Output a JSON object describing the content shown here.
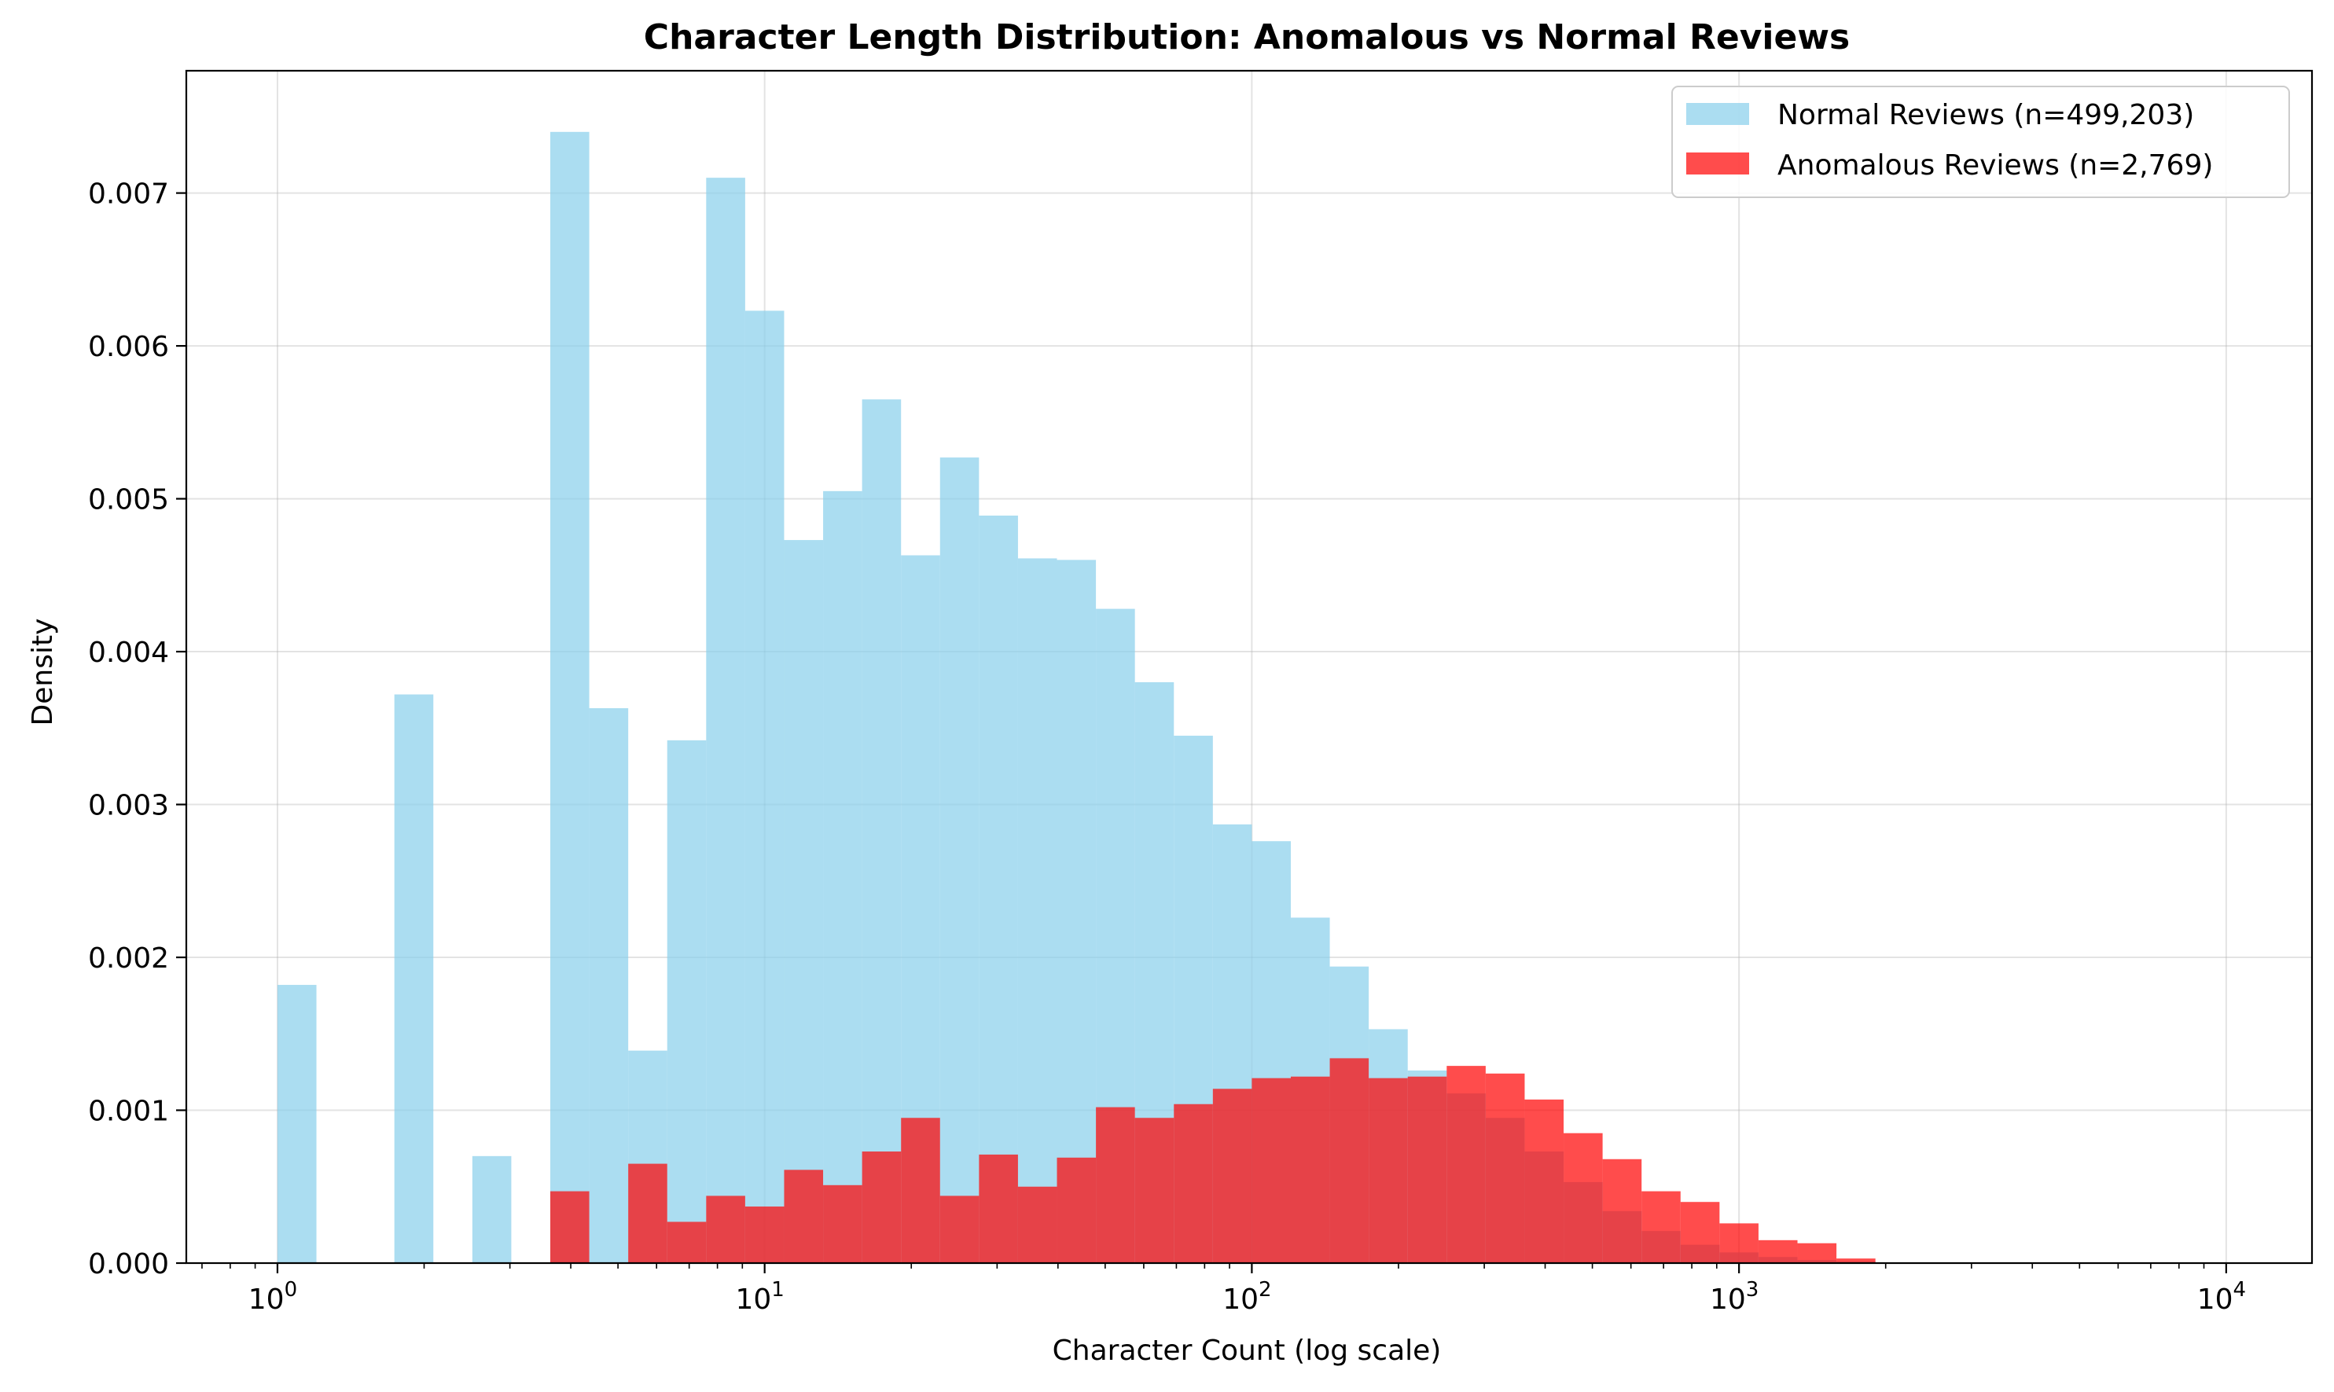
{
  "chart_data": {
    "type": "bar",
    "title": "Character Length Distribution: Anomalous vs Normal Reviews",
    "xlabel": "Character Count (log scale)",
    "ylabel": "Density",
    "x_scale": "log",
    "xlim": [
      0.65,
      15000
    ],
    "ylim": [
      0,
      0.0078
    ],
    "grid": true,
    "legend_position": "top-right",
    "x_ticks": [
      {
        "base": "10",
        "exp": "0",
        "value": 1
      },
      {
        "base": "10",
        "exp": "1",
        "value": 10
      },
      {
        "base": "10",
        "exp": "2",
        "value": 100
      },
      {
        "base": "10",
        "exp": "3",
        "value": 1000
      },
      {
        "base": "10",
        "exp": "4",
        "value": 10000
      }
    ],
    "y_ticks": [
      {
        "label": "0.000",
        "value": 0.0
      },
      {
        "label": "0.001",
        "value": 0.001
      },
      {
        "label": "0.002",
        "value": 0.002
      },
      {
        "label": "0.003",
        "value": 0.003
      },
      {
        "label": "0.004",
        "value": 0.004
      },
      {
        "label": "0.005",
        "value": 0.005
      },
      {
        "label": "0.006",
        "value": 0.006
      },
      {
        "label": "0.007",
        "value": 0.007
      }
    ],
    "bin_edges": [
      1.0,
      1.2023,
      1.4454,
      1.7377,
      2.0893,
      2.5119,
      3.02,
      3.6308,
      4.3652,
      5.2481,
      6.3096,
      7.5858,
      9.1201,
      10.965,
      13.183,
      15.849,
      19.055,
      22.909,
      27.542,
      33.113,
      39.811,
      47.863,
      57.544,
      69.183,
      83.176,
      100.0,
      120.23,
      144.54,
      173.77,
      208.93,
      251.19,
      301.99,
      363.08,
      436.52,
      524.81,
      630.96,
      758.58,
      912.01,
      1096.5,
      1318.3,
      1584.9,
      1905.5,
      2290.9
    ],
    "series": [
      {
        "name": "Normal Reviews (n=499,203)",
        "color": "#87ceeb",
        "opacity": 0.7,
        "values": [
          0.00182,
          0,
          0,
          0.00372,
          0,
          0.0007,
          0,
          0.0074,
          0.00363,
          0.00139,
          0.00342,
          0.0071,
          0.00623,
          0.00473,
          0.00505,
          0.00565,
          0.00463,
          0.00527,
          0.00489,
          0.00461,
          0.0046,
          0.00428,
          0.0038,
          0.00345,
          0.00287,
          0.00276,
          0.00226,
          0.00194,
          0.00153,
          0.00126,
          0.00111,
          0.00095,
          0.00073,
          0.00053,
          0.00034,
          0.00021,
          0.00012,
          7e-05,
          4e-05,
          2e-05,
          1e-05,
          0
        ]
      },
      {
        "name": "Anomalous Reviews (n=2,769)",
        "color": "#ff0000",
        "opacity": 0.7,
        "values": [
          0,
          0,
          0,
          0,
          0,
          0,
          0,
          0.00047,
          0,
          0.00065,
          0.00027,
          0.00044,
          0.00037,
          0.00061,
          0.00051,
          0.00073,
          0.00095,
          0.00044,
          0.00071,
          0.0005,
          0.00069,
          0.00102,
          0.00095,
          0.00104,
          0.00114,
          0.00121,
          0.00122,
          0.00134,
          0.00121,
          0.00122,
          0.00129,
          0.00124,
          0.00107,
          0.00085,
          0.00068,
          0.00047,
          0.0004,
          0.00026,
          0.00015,
          0.00013,
          3e-05,
          0
        ]
      }
    ]
  }
}
